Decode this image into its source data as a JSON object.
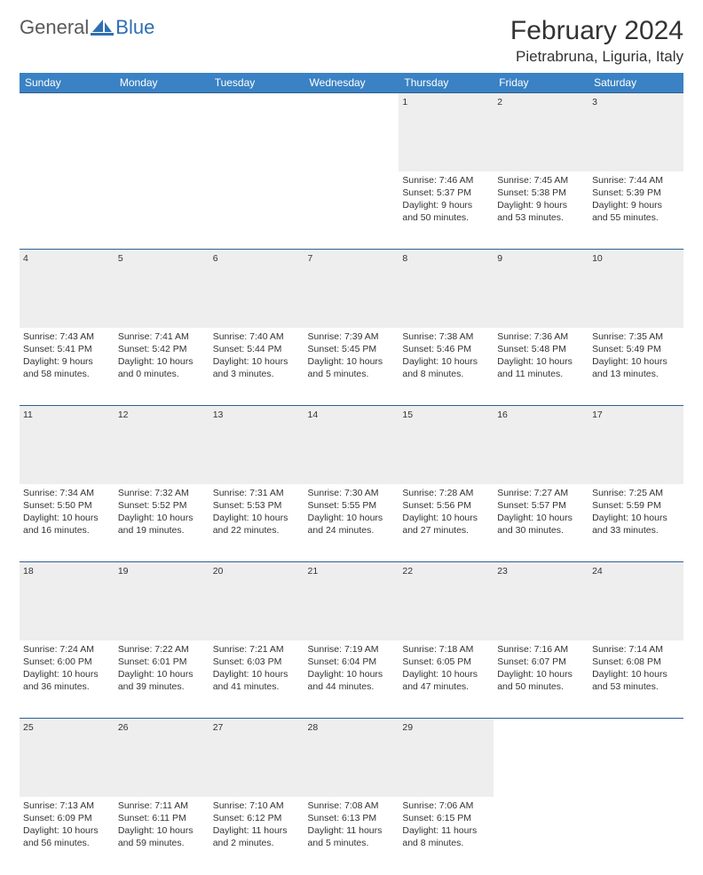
{
  "logo": {
    "text_a": "General",
    "text_b": "Blue",
    "icon_name": "sail-icon",
    "color_gray": "#6a6a6a",
    "color_blue": "#2f6fb0"
  },
  "title": "February 2024",
  "location": "Pietrabruna, Liguria, Italy",
  "colors": {
    "header_bg": "#3a82c4",
    "header_text": "#ffffff",
    "row_border": "#2f5f8f",
    "daynum_bg": "#eeeeee",
    "text": "#333333"
  },
  "weekdays": [
    "Sunday",
    "Monday",
    "Tuesday",
    "Wednesday",
    "Thursday",
    "Friday",
    "Saturday"
  ],
  "weeks": [
    [
      null,
      null,
      null,
      null,
      {
        "n": "1",
        "sr": "Sunrise: 7:46 AM",
        "ss": "Sunset: 5:37 PM",
        "dl": "Daylight: 9 hours and 50 minutes."
      },
      {
        "n": "2",
        "sr": "Sunrise: 7:45 AM",
        "ss": "Sunset: 5:38 PM",
        "dl": "Daylight: 9 hours and 53 minutes."
      },
      {
        "n": "3",
        "sr": "Sunrise: 7:44 AM",
        "ss": "Sunset: 5:39 PM",
        "dl": "Daylight: 9 hours and 55 minutes."
      }
    ],
    [
      {
        "n": "4",
        "sr": "Sunrise: 7:43 AM",
        "ss": "Sunset: 5:41 PM",
        "dl": "Daylight: 9 hours and 58 minutes."
      },
      {
        "n": "5",
        "sr": "Sunrise: 7:41 AM",
        "ss": "Sunset: 5:42 PM",
        "dl": "Daylight: 10 hours and 0 minutes."
      },
      {
        "n": "6",
        "sr": "Sunrise: 7:40 AM",
        "ss": "Sunset: 5:44 PM",
        "dl": "Daylight: 10 hours and 3 minutes."
      },
      {
        "n": "7",
        "sr": "Sunrise: 7:39 AM",
        "ss": "Sunset: 5:45 PM",
        "dl": "Daylight: 10 hours and 5 minutes."
      },
      {
        "n": "8",
        "sr": "Sunrise: 7:38 AM",
        "ss": "Sunset: 5:46 PM",
        "dl": "Daylight: 10 hours and 8 minutes."
      },
      {
        "n": "9",
        "sr": "Sunrise: 7:36 AM",
        "ss": "Sunset: 5:48 PM",
        "dl": "Daylight: 10 hours and 11 minutes."
      },
      {
        "n": "10",
        "sr": "Sunrise: 7:35 AM",
        "ss": "Sunset: 5:49 PM",
        "dl": "Daylight: 10 hours and 13 minutes."
      }
    ],
    [
      {
        "n": "11",
        "sr": "Sunrise: 7:34 AM",
        "ss": "Sunset: 5:50 PM",
        "dl": "Daylight: 10 hours and 16 minutes."
      },
      {
        "n": "12",
        "sr": "Sunrise: 7:32 AM",
        "ss": "Sunset: 5:52 PM",
        "dl": "Daylight: 10 hours and 19 minutes."
      },
      {
        "n": "13",
        "sr": "Sunrise: 7:31 AM",
        "ss": "Sunset: 5:53 PM",
        "dl": "Daylight: 10 hours and 22 minutes."
      },
      {
        "n": "14",
        "sr": "Sunrise: 7:30 AM",
        "ss": "Sunset: 5:55 PM",
        "dl": "Daylight: 10 hours and 24 minutes."
      },
      {
        "n": "15",
        "sr": "Sunrise: 7:28 AM",
        "ss": "Sunset: 5:56 PM",
        "dl": "Daylight: 10 hours and 27 minutes."
      },
      {
        "n": "16",
        "sr": "Sunrise: 7:27 AM",
        "ss": "Sunset: 5:57 PM",
        "dl": "Daylight: 10 hours and 30 minutes."
      },
      {
        "n": "17",
        "sr": "Sunrise: 7:25 AM",
        "ss": "Sunset: 5:59 PM",
        "dl": "Daylight: 10 hours and 33 minutes."
      }
    ],
    [
      {
        "n": "18",
        "sr": "Sunrise: 7:24 AM",
        "ss": "Sunset: 6:00 PM",
        "dl": "Daylight: 10 hours and 36 minutes."
      },
      {
        "n": "19",
        "sr": "Sunrise: 7:22 AM",
        "ss": "Sunset: 6:01 PM",
        "dl": "Daylight: 10 hours and 39 minutes."
      },
      {
        "n": "20",
        "sr": "Sunrise: 7:21 AM",
        "ss": "Sunset: 6:03 PM",
        "dl": "Daylight: 10 hours and 41 minutes."
      },
      {
        "n": "21",
        "sr": "Sunrise: 7:19 AM",
        "ss": "Sunset: 6:04 PM",
        "dl": "Daylight: 10 hours and 44 minutes."
      },
      {
        "n": "22",
        "sr": "Sunrise: 7:18 AM",
        "ss": "Sunset: 6:05 PM",
        "dl": "Daylight: 10 hours and 47 minutes."
      },
      {
        "n": "23",
        "sr": "Sunrise: 7:16 AM",
        "ss": "Sunset: 6:07 PM",
        "dl": "Daylight: 10 hours and 50 minutes."
      },
      {
        "n": "24",
        "sr": "Sunrise: 7:14 AM",
        "ss": "Sunset: 6:08 PM",
        "dl": "Daylight: 10 hours and 53 minutes."
      }
    ],
    [
      {
        "n": "25",
        "sr": "Sunrise: 7:13 AM",
        "ss": "Sunset: 6:09 PM",
        "dl": "Daylight: 10 hours and 56 minutes."
      },
      {
        "n": "26",
        "sr": "Sunrise: 7:11 AM",
        "ss": "Sunset: 6:11 PM",
        "dl": "Daylight: 10 hours and 59 minutes."
      },
      {
        "n": "27",
        "sr": "Sunrise: 7:10 AM",
        "ss": "Sunset: 6:12 PM",
        "dl": "Daylight: 11 hours and 2 minutes."
      },
      {
        "n": "28",
        "sr": "Sunrise: 7:08 AM",
        "ss": "Sunset: 6:13 PM",
        "dl": "Daylight: 11 hours and 5 minutes."
      },
      {
        "n": "29",
        "sr": "Sunrise: 7:06 AM",
        "ss": "Sunset: 6:15 PM",
        "dl": "Daylight: 11 hours and 8 minutes."
      },
      null,
      null
    ]
  ]
}
